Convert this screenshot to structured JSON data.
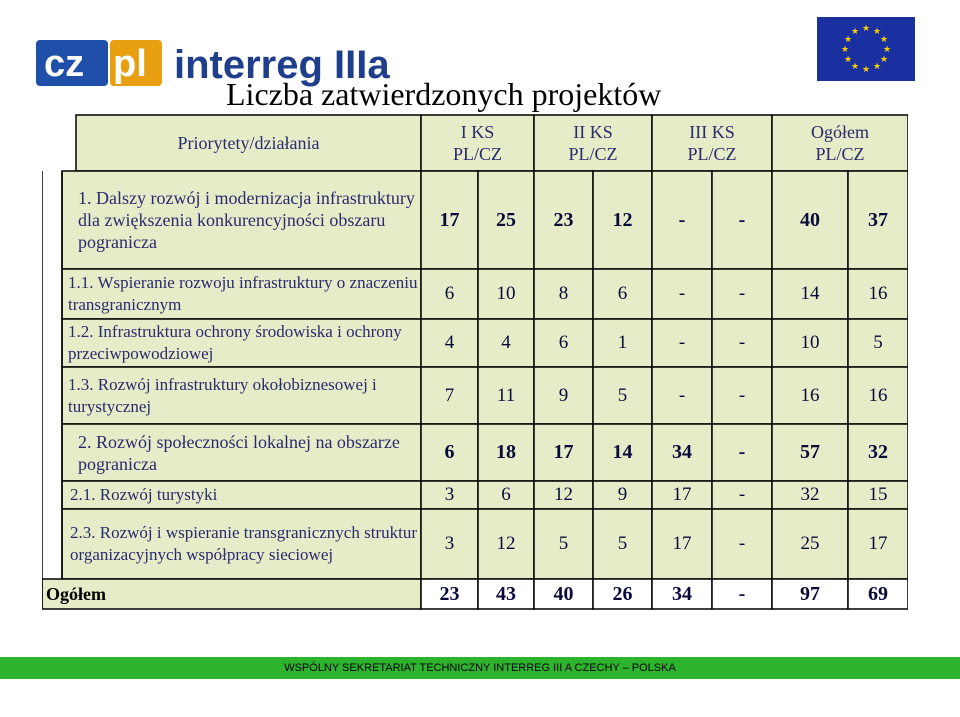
{
  "title": "Liczba zatwierdzonych projektów",
  "logo": {
    "part1": "cz",
    "part2": "pl",
    "part3": "interreg IIIa"
  },
  "footer": "WSPÓLNY SEKRETARIAT TECHNICZNY  INTERREG  III A CZECHY – POLSKA",
  "header": {
    "col0": "Priorytety/działania",
    "ks1": [
      "I KS",
      "PL/CZ"
    ],
    "ks2": [
      "II KS",
      "PL/CZ"
    ],
    "ks3": [
      "III KS",
      "PL/CZ"
    ],
    "total": [
      "Ogółem",
      "PL/CZ"
    ]
  },
  "rows": [
    {
      "label": "1. Dalszy rozwój i modernizacja infrastruktury dla zwiększenia konkurencyjności obszaru pogranicza",
      "values": [
        "17",
        "25",
        "23",
        "12",
        "-",
        "-",
        "40",
        "37"
      ]
    },
    {
      "label": "1.1. Wspieranie rozwoju infrastruktury o znaczeniu transgranicznym",
      "values": [
        "6",
        "10",
        "8",
        "6",
        "-",
        "-",
        "14",
        "16"
      ]
    },
    {
      "label": "1.2. Infrastruktura ochrony środowiska i ochrony przeciwpowodziowej",
      "values": [
        "4",
        "4",
        "6",
        "1",
        "-",
        "-",
        "10",
        "5"
      ]
    },
    {
      "label": "1.3. Rozwój infrastruktury okołobiznesowej  i turystycznej",
      "values": [
        "7",
        "11",
        "9",
        "5",
        "-",
        "-",
        "16",
        "16"
      ]
    },
    {
      "label": "2. Rozwój społeczności lokalnej na obszarze pogranicza",
      "values": [
        "6",
        "18",
        "17",
        "14",
        "34",
        "-",
        "57",
        "32"
      ]
    },
    {
      "label": "2.1. Rozwój turystyki",
      "values": [
        "3",
        "6",
        "12",
        "9",
        "17",
        "-",
        "32",
        "15"
      ]
    },
    {
      "label": "2.3. Rozwój i wspieranie transgranicznych struktur organizacyjnych współpracy sieciowej",
      "values": [
        "3",
        "12",
        "5",
        "5",
        "17",
        "-",
        "25",
        "17"
      ]
    }
  ],
  "total_row": {
    "label": "Ogółem",
    "values": [
      "23",
      "43",
      "40",
      "26",
      "34",
      "-",
      "97",
      "69"
    ]
  },
  "colors": {
    "cell_bg": "#e6ecc8",
    "green": "#2db32d",
    "text": "#2a2a6e"
  }
}
